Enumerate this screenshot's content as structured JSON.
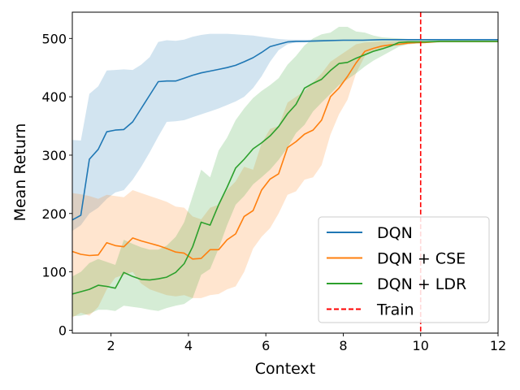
{
  "chart_data": {
    "type": "line",
    "title": "",
    "xlabel": "Context",
    "ylabel": "Mean Return",
    "xlim": [
      1,
      12
    ],
    "ylim": [
      -5,
      545
    ],
    "xticks": [
      2,
      4,
      6,
      8,
      10,
      12
    ],
    "yticks": [
      0,
      100,
      200,
      300,
      400,
      500
    ],
    "grid": false,
    "legend_position": "lower-right",
    "series": [
      {
        "name": "DQN",
        "color": "#1f77b4",
        "x": [
          1.0,
          1.22,
          1.44,
          1.67,
          1.89,
          2.11,
          2.33,
          2.56,
          2.78,
          3.0,
          3.22,
          3.44,
          3.67,
          3.89,
          4.11,
          4.33,
          4.56,
          4.78,
          5.0,
          5.22,
          5.44,
          5.67,
          5.89,
          6.11,
          6.33,
          6.56,
          6.78,
          7.0,
          7.5,
          8.0,
          8.5,
          9.0,
          9.5,
          10.0,
          10.5,
          11.0,
          11.5,
          12.0
        ],
        "y": [
          189,
          197,
          293,
          310,
          340,
          343,
          344,
          357,
          380,
          403,
          426,
          427,
          427,
          432,
          437,
          441,
          444,
          447,
          450,
          454,
          460,
          467,
          476,
          486,
          490,
          494,
          495,
          495,
          496,
          497,
          497,
          498,
          498,
          498,
          498,
          498,
          498,
          498
        ],
        "lower": [
          170,
          180,
          200,
          210,
          225,
          236,
          240,
          258,
          280,
          305,
          332,
          357,
          358,
          360,
          365,
          370,
          375,
          380,
          386,
          392,
          400,
          415,
          435,
          460,
          480,
          490,
          493,
          494,
          495,
          496,
          496,
          497,
          497,
          497,
          497,
          497,
          497,
          497
        ],
        "upper": [
          326,
          325,
          405,
          418,
          445,
          446,
          447,
          446,
          455,
          468,
          494,
          497,
          496,
          498,
          503,
          506,
          508,
          508,
          508,
          507,
          506,
          505,
          503,
          501,
          499,
          498,
          498,
          498,
          498,
          498,
          498,
          499,
          499,
          499,
          499,
          499,
          499,
          499
        ]
      },
      {
        "name": "DQN + CSE",
        "color": "#ff7f0e",
        "x": [
          1.0,
          1.22,
          1.44,
          1.67,
          1.89,
          2.11,
          2.33,
          2.56,
          2.78,
          3.0,
          3.22,
          3.44,
          3.67,
          3.89,
          4.11,
          4.33,
          4.56,
          4.78,
          5.0,
          5.22,
          5.44,
          5.67,
          5.89,
          6.11,
          6.33,
          6.56,
          6.78,
          7.0,
          7.22,
          7.44,
          7.67,
          7.89,
          8.11,
          8.33,
          8.56,
          8.78,
          9.0,
          9.22,
          9.44,
          9.67,
          9.89,
          10.11,
          10.5,
          11.0,
          11.5,
          12.0
        ],
        "y": [
          135,
          130,
          128,
          129,
          150,
          145,
          143,
          158,
          153,
          149,
          145,
          140,
          134,
          132,
          122,
          123,
          138,
          138,
          155,
          165,
          195,
          205,
          240,
          259,
          268,
          313,
          323,
          336,
          343,
          360,
          400,
          415,
          435,
          458,
          478,
          483,
          487,
          489,
          490,
          492,
          493,
          493,
          495,
          495,
          495,
          495
        ],
        "lower": [
          22,
          30,
          25,
          40,
          70,
          90,
          95,
          100,
          80,
          70,
          65,
          60,
          58,
          60,
          55,
          55,
          60,
          62,
          70,
          75,
          100,
          140,
          160,
          175,
          200,
          232,
          238,
          258,
          262,
          283,
          335,
          370,
          395,
          440,
          470,
          478,
          483,
          486,
          488,
          490,
          491,
          492,
          494,
          494,
          494,
          494
        ],
        "upper": [
          235,
          233,
          230,
          225,
          232,
          230,
          228,
          240,
          235,
          230,
          225,
          220,
          212,
          210,
          195,
          190,
          210,
          215,
          240,
          255,
          280,
          275,
          320,
          345,
          350,
          390,
          400,
          410,
          425,
          440,
          460,
          470,
          480,
          490,
          493,
          494,
          495,
          495,
          496,
          496,
          496,
          496,
          496,
          496,
          496,
          496
        ]
      },
      {
        "name": "DQN + LDR",
        "color": "#2ca02c",
        "x": [
          1.0,
          1.22,
          1.44,
          1.67,
          1.89,
          2.11,
          2.33,
          2.56,
          2.78,
          3.0,
          3.22,
          3.44,
          3.67,
          3.89,
          4.11,
          4.33,
          4.56,
          4.78,
          5.0,
          5.22,
          5.44,
          5.67,
          5.89,
          6.11,
          6.33,
          6.56,
          6.78,
          7.0,
          7.22,
          7.44,
          7.67,
          7.89,
          8.11,
          8.33,
          8.56,
          8.78,
          9.0,
          9.22,
          9.44,
          9.67,
          9.89,
          10.11,
          10.5,
          11.0,
          11.5,
          12.0
        ],
        "y": [
          62,
          66,
          70,
          77,
          75,
          72,
          99,
          92,
          87,
          86,
          88,
          91,
          99,
          114,
          143,
          185,
          180,
          215,
          245,
          278,
          293,
          311,
          321,
          333,
          349,
          371,
          387,
          415,
          423,
          430,
          445,
          457,
          459,
          466,
          472,
          478,
          482,
          487,
          493,
          494,
          494,
          494,
          495,
          495,
          495,
          495
        ],
        "lower": [
          24,
          25,
          28,
          35,
          35,
          33,
          42,
          40,
          38,
          35,
          33,
          38,
          42,
          45,
          55,
          95,
          105,
          140,
          180,
          215,
          230,
          250,
          262,
          275,
          292,
          313,
          338,
          352,
          375,
          390,
          405,
          420,
          430,
          440,
          452,
          462,
          470,
          478,
          486,
          490,
          491,
          492,
          493,
          493,
          493,
          493
        ],
        "upper": [
          92,
          100,
          115,
          122,
          117,
          112,
          155,
          148,
          142,
          138,
          138,
          145,
          160,
          185,
          230,
          275,
          262,
          308,
          330,
          360,
          380,
          398,
          410,
          420,
          432,
          455,
          470,
          488,
          500,
          507,
          510,
          520,
          520,
          512,
          510,
          505,
          502,
          501,
          500,
          499,
          498,
          497,
          497,
          497,
          497,
          497
        ]
      }
    ],
    "annotations": [
      {
        "type": "vline",
        "name": "Train",
        "x": 10,
        "color": "#ff0000",
        "style": "dashed"
      }
    ],
    "legend": [
      "DQN",
      "DQN + CSE",
      "DQN + LDR",
      "Train"
    ]
  }
}
